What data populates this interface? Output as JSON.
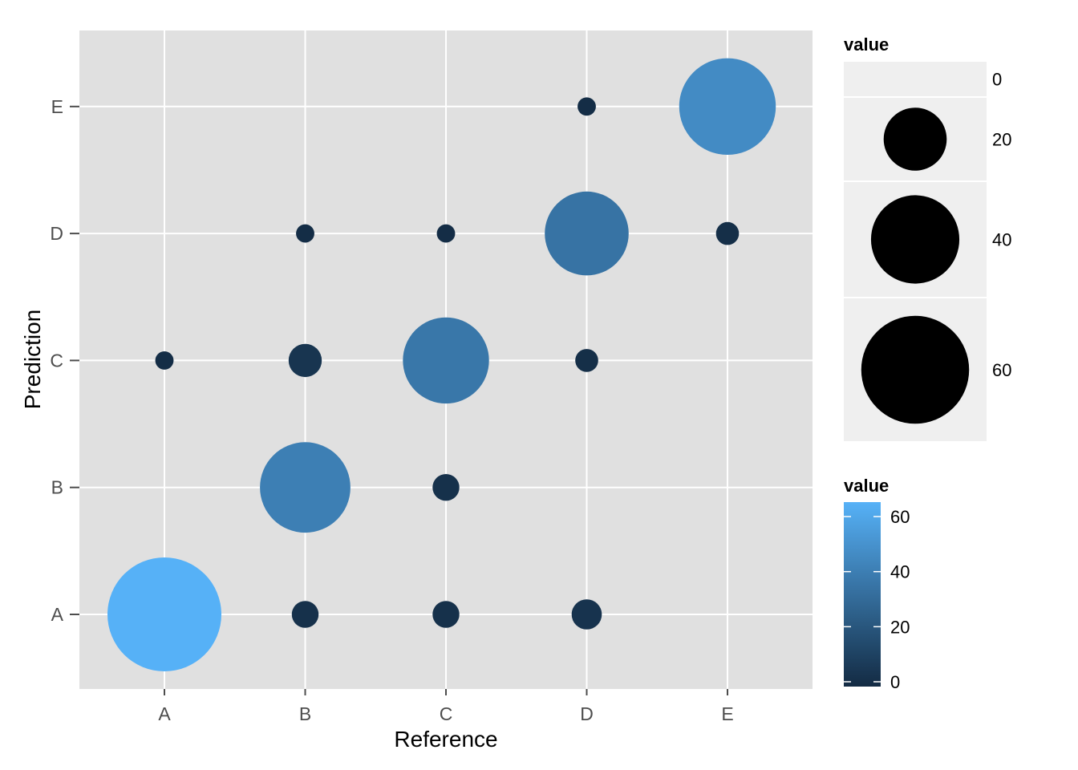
{
  "chart_data": {
    "type": "scatter",
    "subtype": "bubble-confusion-matrix",
    "xlabel": "Reference",
    "ylabel": "Prediction",
    "x_categories": [
      "A",
      "B",
      "C",
      "D",
      "E"
    ],
    "y_categories": [
      "A",
      "B",
      "C",
      "D",
      "E"
    ],
    "grid": true,
    "size_legend": {
      "title": "value",
      "breaks": [
        0,
        20,
        40,
        60
      ]
    },
    "color_legend": {
      "title": "value",
      "breaks": [
        0,
        20,
        40,
        60
      ],
      "range": [
        0,
        67
      ],
      "low_color": "#132B43",
      "high_color": "#56B1F7"
    },
    "points": [
      {
        "reference": "A",
        "prediction": "A",
        "value": 67
      },
      {
        "reference": "B",
        "prediction": "A",
        "value": 3
      },
      {
        "reference": "C",
        "prediction": "A",
        "value": 3
      },
      {
        "reference": "D",
        "prediction": "A",
        "value": 4
      },
      {
        "reference": "B",
        "prediction": "B",
        "value": 42
      },
      {
        "reference": "C",
        "prediction": "B",
        "value": 3
      },
      {
        "reference": "A",
        "prediction": "C",
        "value": 1
      },
      {
        "reference": "B",
        "prediction": "C",
        "value": 5
      },
      {
        "reference": "C",
        "prediction": "C",
        "value": 38
      },
      {
        "reference": "D",
        "prediction": "C",
        "value": 2
      },
      {
        "reference": "B",
        "prediction": "D",
        "value": 1
      },
      {
        "reference": "C",
        "prediction": "D",
        "value": 1
      },
      {
        "reference": "D",
        "prediction": "D",
        "value": 36
      },
      {
        "reference": "E",
        "prediction": "D",
        "value": 2
      },
      {
        "reference": "D",
        "prediction": "E",
        "value": 1
      },
      {
        "reference": "E",
        "prediction": "E",
        "value": 48
      }
    ]
  }
}
